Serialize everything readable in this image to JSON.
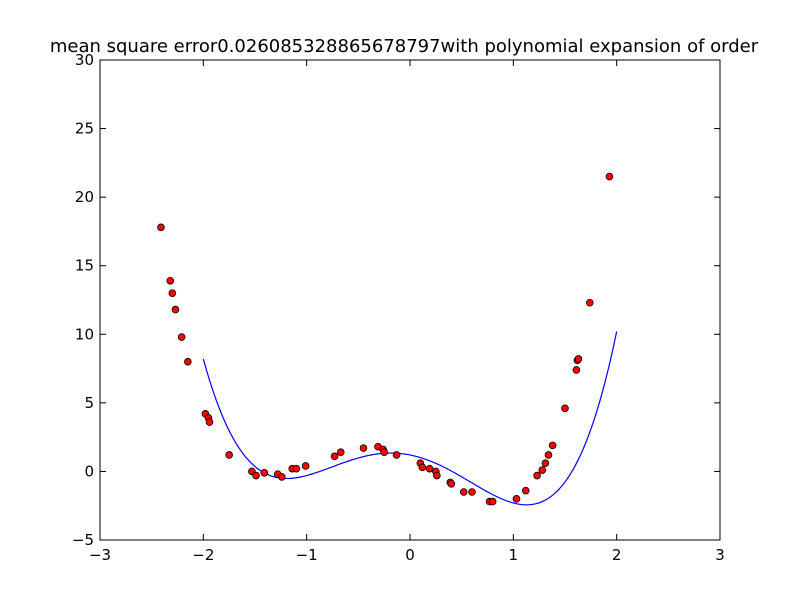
{
  "chart_data": {
    "type": "scatter",
    "title": "mean square error0.026085328865678797with polynomial expansion of order",
    "xlabel": "",
    "ylabel": "",
    "xlim": [
      -3,
      3
    ],
    "ylim": [
      -5,
      30
    ],
    "xticks": [
      -3,
      -2,
      -1,
      0,
      1,
      2,
      3
    ],
    "xtick_labels": [
      "−3",
      "−2",
      "−1",
      "0",
      "1",
      "2",
      "3"
    ],
    "yticks": [
      -5,
      0,
      5,
      10,
      15,
      20,
      25,
      30
    ],
    "ytick_labels": [
      "−5",
      "0",
      "5",
      "10",
      "15",
      "20",
      "25",
      "30"
    ],
    "grid": false,
    "legend": "none",
    "series": [
      {
        "kind": "points",
        "color": "#ff0000",
        "edge_color": "#000000",
        "points": [
          [
            -2.41,
            17.8
          ],
          [
            -2.32,
            13.9
          ],
          [
            -2.3,
            13.0
          ],
          [
            -2.27,
            11.8
          ],
          [
            -2.21,
            9.8
          ],
          [
            -2.15,
            8.0
          ],
          [
            -1.98,
            4.2
          ],
          [
            -1.95,
            3.9
          ],
          [
            -1.94,
            3.6
          ],
          [
            -1.75,
            1.2
          ],
          [
            -1.53,
            0.0
          ],
          [
            -1.49,
            -0.3
          ],
          [
            -1.41,
            -0.1
          ],
          [
            -1.28,
            -0.2
          ],
          [
            -1.24,
            -0.4
          ],
          [
            -1.14,
            0.2
          ],
          [
            -1.1,
            0.2
          ],
          [
            -1.01,
            0.4
          ],
          [
            -0.73,
            1.1
          ],
          [
            -0.67,
            1.4
          ],
          [
            -0.45,
            1.7
          ],
          [
            -0.31,
            1.8
          ],
          [
            -0.26,
            1.6
          ],
          [
            -0.25,
            1.4
          ],
          [
            -0.13,
            1.2
          ],
          [
            0.1,
            0.6
          ],
          [
            0.12,
            0.3
          ],
          [
            0.19,
            0.2
          ],
          [
            0.25,
            0.0
          ],
          [
            0.26,
            -0.3
          ],
          [
            0.39,
            -0.8
          ],
          [
            0.4,
            -0.9
          ],
          [
            0.52,
            -1.5
          ],
          [
            0.6,
            -1.5
          ],
          [
            0.77,
            -2.2
          ],
          [
            0.8,
            -2.2
          ],
          [
            1.03,
            -2.0
          ],
          [
            1.12,
            -1.4
          ],
          [
            1.23,
            -0.3
          ],
          [
            1.28,
            0.1
          ],
          [
            1.31,
            0.6
          ],
          [
            1.34,
            1.2
          ],
          [
            1.38,
            1.9
          ],
          [
            1.5,
            4.6
          ],
          [
            1.61,
            7.4
          ],
          [
            1.62,
            8.1
          ],
          [
            1.63,
            8.2
          ],
          [
            1.74,
            12.3
          ],
          [
            1.93,
            21.5
          ]
        ]
      },
      {
        "kind": "curve",
        "color": "#0000ff",
        "x_range": [
          -2,
          2
        ],
        "polynomial_coefficients_ascending": [
          1.2,
          -1.5,
          -4.0,
          0.5,
          1.5
        ]
      }
    ]
  }
}
